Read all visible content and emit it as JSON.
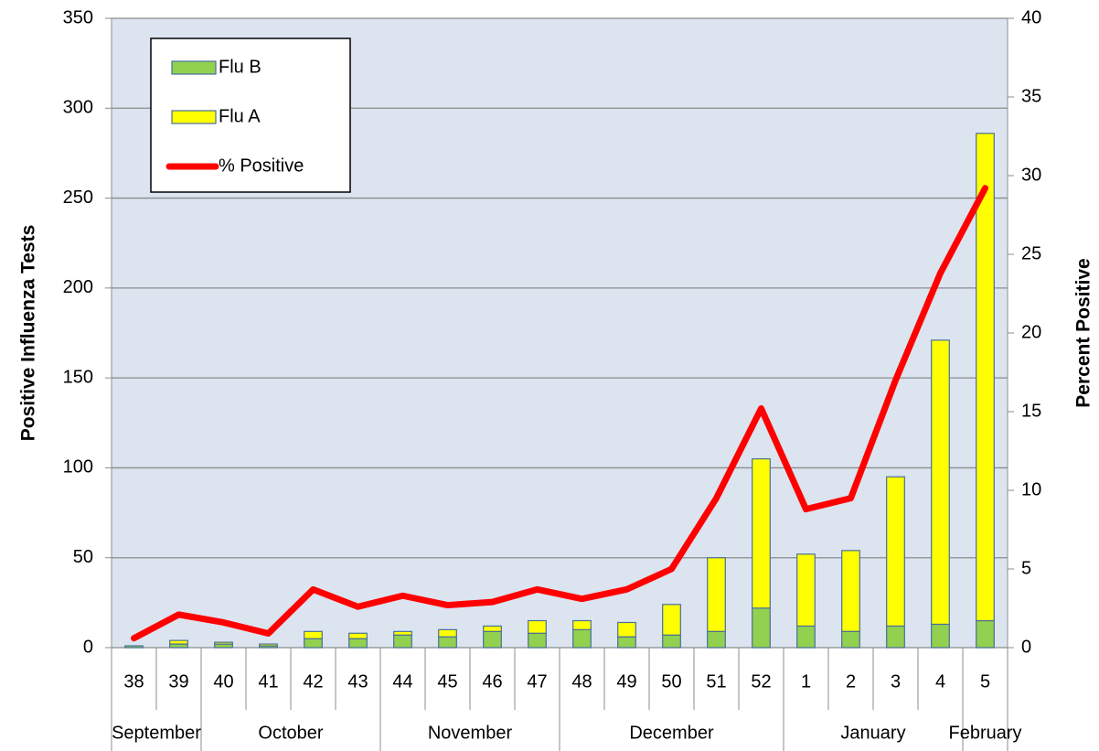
{
  "chart_data": {
    "type": "bar",
    "stacked": true,
    "y_label": "Positive Influenza Tests",
    "y2_label": "Percent Positive",
    "categories": [
      "38",
      "39",
      "40",
      "41",
      "42",
      "43",
      "44",
      "45",
      "46",
      "47",
      "48",
      "49",
      "50",
      "51",
      "52",
      "1",
      "2",
      "3",
      "4",
      "5"
    ],
    "months": [
      "September",
      null,
      "October",
      null,
      null,
      null,
      "November",
      null,
      null,
      null,
      "December",
      null,
      null,
      null,
      null,
      "January",
      null,
      null,
      null,
      "February"
    ],
    "series": [
      {
        "name": "Flu B",
        "color": "#92d050",
        "values": [
          1,
          2,
          2,
          1,
          5,
          5,
          7,
          6,
          9,
          8,
          10,
          6,
          7,
          9,
          22,
          12,
          9,
          12,
          13,
          15
        ]
      },
      {
        "name": "Flu A",
        "color": "#ffff00",
        "values": [
          0,
          2,
          1,
          1,
          4,
          3,
          2,
          4,
          3,
          7,
          5,
          8,
          17,
          41,
          83,
          40,
          45,
          83,
          158,
          271
        ]
      },
      {
        "name": "% Positive",
        "type": "line",
        "axis": "y2",
        "color": "#ff0000",
        "values": [
          0.6,
          2.1,
          1.6,
          0.9,
          3.7,
          2.6,
          3.3,
          2.7,
          2.9,
          3.7,
          3.1,
          3.7,
          5.0,
          9.5,
          15.2,
          8.8,
          9.5,
          17.0,
          23.8,
          29.2
        ]
      }
    ],
    "ylim": [
      0,
      350
    ],
    "yticks": [
      0,
      50,
      100,
      150,
      200,
      250,
      300,
      350
    ],
    "y2lim": [
      0,
      40
    ],
    "y2ticks": [
      0,
      5,
      10,
      15,
      20,
      25,
      30,
      35,
      40
    ],
    "grid": true,
    "legend": "top-left",
    "plot_background": "#dbe4ef"
  }
}
